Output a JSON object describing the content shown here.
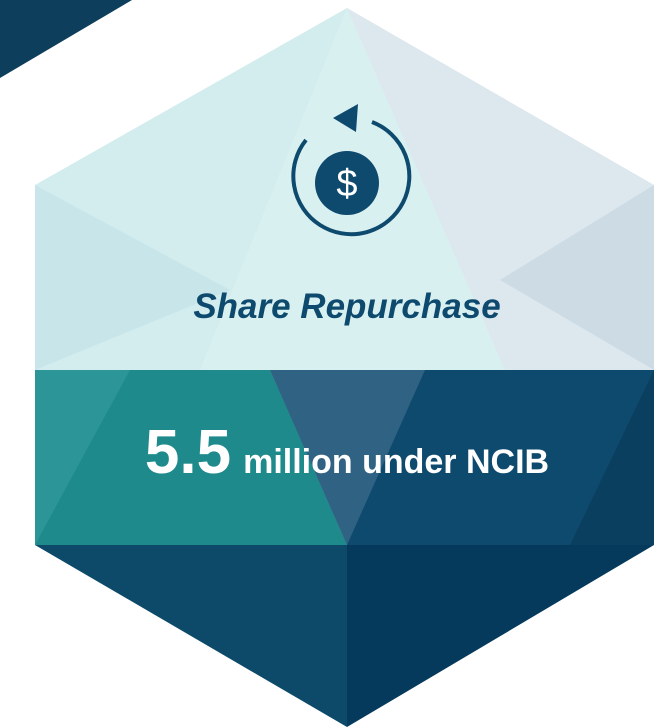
{
  "icon": {
    "symbol": "$"
  },
  "title": "Share Repurchase",
  "stat": {
    "value": "5.5",
    "unit": "million under NCIB"
  }
}
